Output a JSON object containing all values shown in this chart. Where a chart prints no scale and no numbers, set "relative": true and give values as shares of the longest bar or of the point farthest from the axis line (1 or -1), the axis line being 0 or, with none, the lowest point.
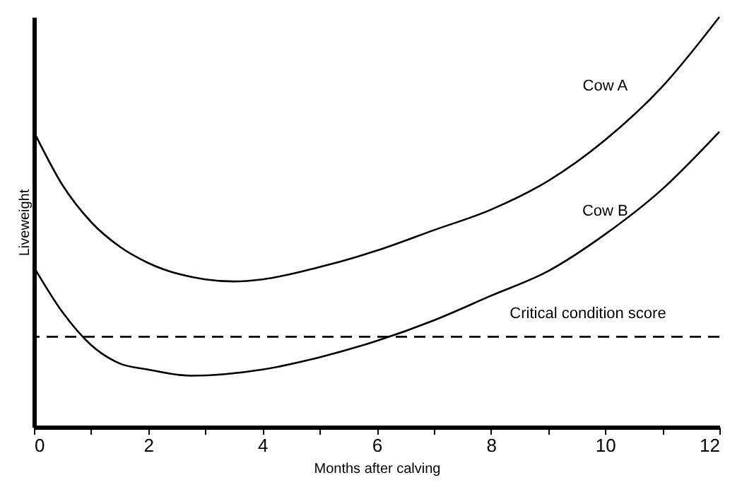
{
  "chart_data": {
    "type": "line",
    "xlabel": "Months after calving",
    "ylabel": "Liveweight",
    "relative": true,
    "xlim": [
      0,
      12
    ],
    "xticks": [
      0,
      {
        "value": 1,
        "label": null
      },
      2,
      {
        "value": 3,
        "label": null
      },
      4,
      {
        "value": 5,
        "label": null
      },
      6,
      {
        "value": 7,
        "label": null
      },
      8,
      {
        "value": 9,
        "label": null
      },
      10,
      {
        "value": 11,
        "label": null
      },
      12
    ],
    "line_style": "solid",
    "marker": "none",
    "series": [
      {
        "name": "Cow A",
        "color": "#000000",
        "x": [
          0,
          0.5,
          1,
          1.5,
          2,
          3,
          3.5,
          4,
          5,
          6,
          7,
          8,
          9,
          10,
          11,
          12
        ],
        "values": [
          0.72,
          0.59,
          0.5,
          0.44,
          0.4,
          0.36,
          0.355,
          0.36,
          0.39,
          0.43,
          0.48,
          0.53,
          0.6,
          0.7,
          0.83,
          1
        ]
      },
      {
        "name": "Cow B",
        "color": "#000000",
        "x": [
          0,
          0.5,
          1,
          1.5,
          2,
          2.75,
          4,
          5,
          6,
          7,
          8,
          9,
          10,
          11,
          12
        ],
        "values": [
          0.39,
          0.28,
          0.2,
          0.155,
          0.14,
          0.125,
          0.14,
          0.17,
          0.21,
          0.26,
          0.32,
          0.38,
          0.47,
          0.58,
          0.72
        ]
      }
    ],
    "ref_lines": [
      {
        "axis": "y",
        "value": 0.22,
        "label": "Critical condition score",
        "line_style": "dashed",
        "color": "#000000"
      }
    ]
  }
}
